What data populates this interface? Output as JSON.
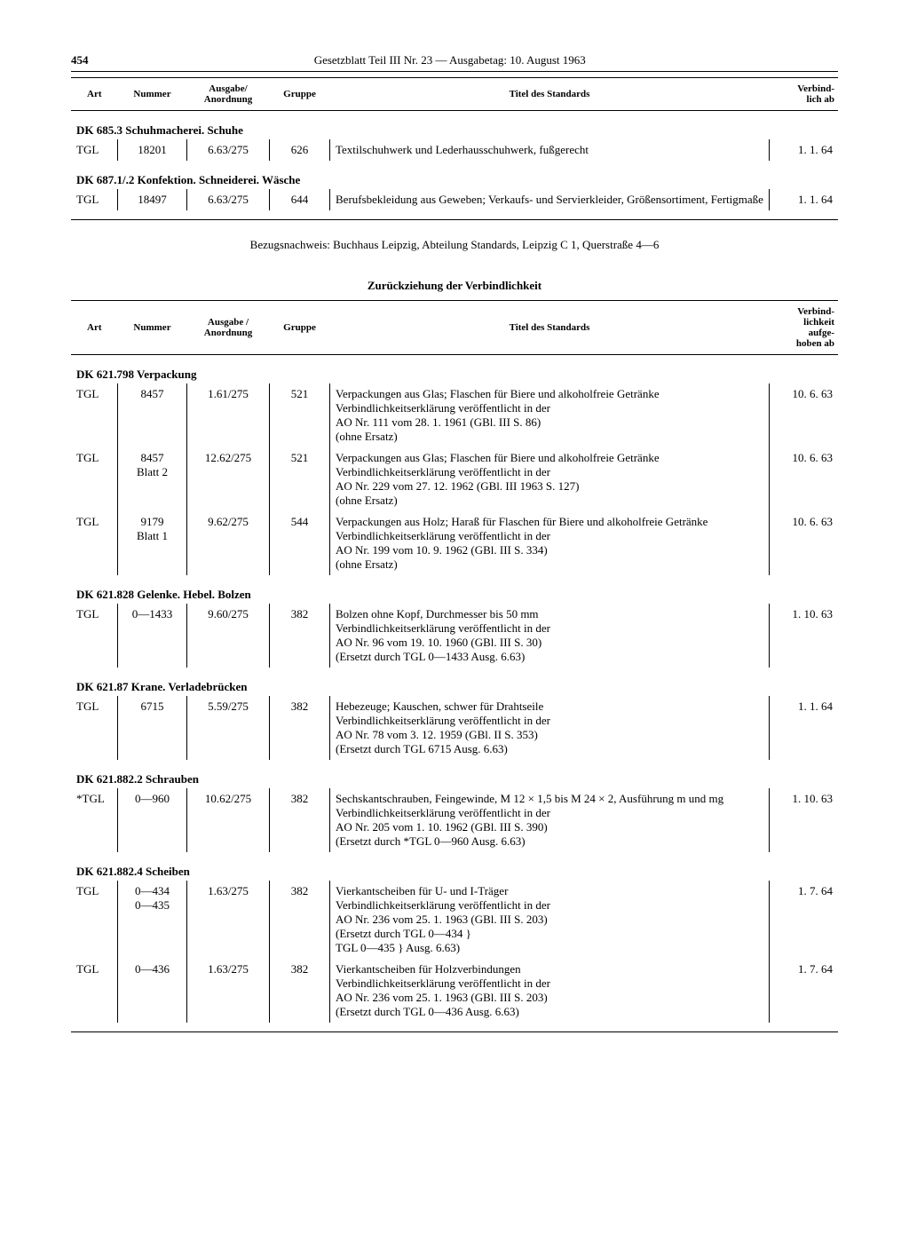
{
  "page_number": "454",
  "header_title": "Gesetzblatt Teil III Nr. 23 — Ausgabetag: 10. August 1963",
  "columns1": [
    "Art",
    "Nummer",
    "Ausgabe/\nAnordnung",
    "Gruppe",
    "Titel des Standards",
    "Verbind-\nlich ab"
  ],
  "columns2": [
    "Art",
    "Nummer",
    "Ausgabe /\nAnordnung",
    "Gruppe",
    "Titel des Standards",
    "Verbind-\nlichkeit\naufge-\nhoben ab"
  ],
  "table1": [
    {
      "type": "section",
      "text": "DK 685.3 Schuhmacherei. Schuhe"
    },
    {
      "type": "data",
      "art": "TGL",
      "num": "18201",
      "aus": "6.63/275",
      "grp": "626",
      "titel": "Textilschuhwerk und Lederhausschuhwerk, fußgerecht",
      "dat": "1.  1. 64"
    },
    {
      "type": "section",
      "text": "DK 687.1/.2 Konfektion. Schneiderei. Wäsche"
    },
    {
      "type": "data",
      "art": "TGL",
      "num": "18497",
      "aus": "6.63/275",
      "grp": "644",
      "titel": "Berufsbekleidung aus Geweben; Verkaufs- und Servierkleider, Größensortiment, Fertigmaße",
      "dat": "1.  1. 64"
    }
  ],
  "footnote": "Bezugsnachweis: Buchhaus Leipzig, Abteilung Standards, Leipzig C 1, Querstraße 4—6",
  "subhead": "Zurückziehung der Verbindlichkeit",
  "table2": [
    {
      "type": "section",
      "text": "DK 621.798 Verpackung"
    },
    {
      "type": "data",
      "art": "TGL",
      "num": "8457",
      "aus": "1.61/275",
      "grp": "521",
      "titel": "Verpackungen aus Glas; Flaschen für Biere und alkoholfreie Getränke\nVerbindlichkeitserklärung veröffentlicht in der\nAO Nr. 111 vom 28. 1. 1961 (GBl. III S. 86)\n(ohne Ersatz)",
      "dat": "10.  6. 63"
    },
    {
      "type": "data",
      "art": "TGL",
      "num": "8457\nBlatt 2",
      "aus": "12.62/275",
      "grp": "521",
      "titel": "Verpackungen aus Glas; Flaschen für Biere und alkoholfreie Getränke\nVerbindlichkeitserklärung veröffentlicht in der\nAO Nr. 229 vom 27. 12. 1962 (GBl. III 1963 S. 127)\n(ohne Ersatz)",
      "dat": "10.  6. 63"
    },
    {
      "type": "data",
      "art": "TGL",
      "num": "9179\nBlatt 1",
      "aus": "9.62/275",
      "grp": "544",
      "titel": "Verpackungen aus Holz; Haraß für Flaschen für Biere und alkoholfreie Getränke\nVerbindlichkeitserklärung veröffentlicht in der\nAO Nr. 199 vom 10. 9. 1962 (GBl. III S. 334)\n(ohne Ersatz)",
      "dat": "10.  6. 63"
    },
    {
      "type": "section",
      "text": "DK 621.828 Gelenke. Hebel. Bolzen"
    },
    {
      "type": "data",
      "art": "TGL",
      "num": "0—1433",
      "aus": "9.60/275",
      "grp": "382",
      "titel": "Bolzen ohne Kopf, Durchmesser bis 50 mm\nVerbindlichkeitserklärung veröffentlicht in der\nAO Nr. 96 vom 19. 10. 1960 (GBl. III S. 30)\n(Ersetzt durch TGL 0—1433 Ausg. 6.63)",
      "dat": "1. 10. 63"
    },
    {
      "type": "section",
      "text": "DK 621.87 Krane. Verladebrücken"
    },
    {
      "type": "data",
      "art": "TGL",
      "num": "6715",
      "aus": "5.59/275",
      "grp": "382",
      "titel": "Hebezeuge; Kauschen, schwer für Drahtseile\nVerbindlichkeitserklärung veröffentlicht in der\nAO Nr. 78 vom 3. 12. 1959 (GBl. II S. 353)\n(Ersetzt durch TGL 6715 Ausg. 6.63)",
      "dat": "1.  1. 64"
    },
    {
      "type": "section",
      "text": "DK 621.882.2 Schrauben"
    },
    {
      "type": "data",
      "art": "*TGL",
      "num": "0—960",
      "aus": "10.62/275",
      "grp": "382",
      "titel": "Sechskantschrauben, Feingewinde, M 12 × 1,5 bis M 24 × 2, Ausführung m und mg\nVerbindlichkeitserklärung veröffentlicht in der\nAO Nr. 205 vom 1. 10. 1962 (GBl. III S. 390)\n(Ersetzt durch *TGL 0—960 Ausg. 6.63)",
      "dat": "1. 10. 63"
    },
    {
      "type": "section",
      "text": "DK 621.882.4 Scheiben"
    },
    {
      "type": "data",
      "art": "TGL",
      "num": "0—434\n0—435",
      "aus": "1.63/275",
      "grp": "382",
      "titel": "Vierkantscheiben für U- und I-Träger\nVerbindlichkeitserklärung veröffentlicht in der\nAO Nr. 236 vom 25. 1. 1963 (GBl. III S. 203)\n(Ersetzt durch TGL 0—434 }\n                     TGL 0—435 } Ausg. 6.63)",
      "dat": "1.  7. 64"
    },
    {
      "type": "data",
      "art": "TGL",
      "num": "0—436",
      "aus": "1.63/275",
      "grp": "382",
      "titel": "Vierkantscheiben für Holzverbindungen\nVerbindlichkeitserklärung veröffentlicht in der\nAO Nr. 236 vom 25. 1. 1963 (GBl. III S. 203)\n(Ersetzt durch TGL 0—436 Ausg. 6.63)",
      "dat": "1.  7. 64"
    }
  ]
}
